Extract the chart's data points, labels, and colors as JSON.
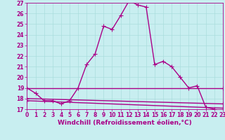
{
  "xlabel": "Windchill (Refroidissement éolien,°C)",
  "bg_color": "#c8eef0",
  "line_color": "#aa0088",
  "grid_color": "#aadddd",
  "xlim": [
    0,
    23
  ],
  "ylim": [
    17,
    27
  ],
  "yticks": [
    17,
    18,
    19,
    20,
    21,
    22,
    23,
    24,
    25,
    26,
    27
  ],
  "xticks": [
    0,
    1,
    2,
    3,
    4,
    5,
    6,
    7,
    8,
    9,
    10,
    11,
    12,
    13,
    14,
    15,
    16,
    17,
    18,
    19,
    20,
    21,
    22,
    23
  ],
  "lines": [
    {
      "x": [
        0,
        1,
        2,
        3,
        4,
        5,
        6,
        7,
        8,
        9,
        10,
        11,
        12,
        13,
        14,
        15,
        16,
        17,
        18,
        19,
        20,
        21,
        22
      ],
      "y": [
        19.0,
        18.5,
        17.8,
        17.8,
        17.5,
        17.8,
        19.0,
        21.2,
        22.2,
        24.8,
        24.5,
        25.8,
        27.2,
        26.8,
        26.6,
        21.2,
        21.5,
        21.0,
        20.0,
        19.0,
        19.2,
        17.2,
        17.0
      ]
    },
    {
      "x": [
        0,
        23
      ],
      "y": [
        19.0,
        19.0
      ]
    },
    {
      "x": [
        0,
        23
      ],
      "y": [
        18.0,
        17.5
      ]
    },
    {
      "x": [
        0,
        23
      ],
      "y": [
        17.8,
        17.1
      ]
    }
  ],
  "marker": "+",
  "markersize": 4,
  "linewidth": 1.0,
  "tick_fontsize": 5.5,
  "label_fontsize": 6.5
}
